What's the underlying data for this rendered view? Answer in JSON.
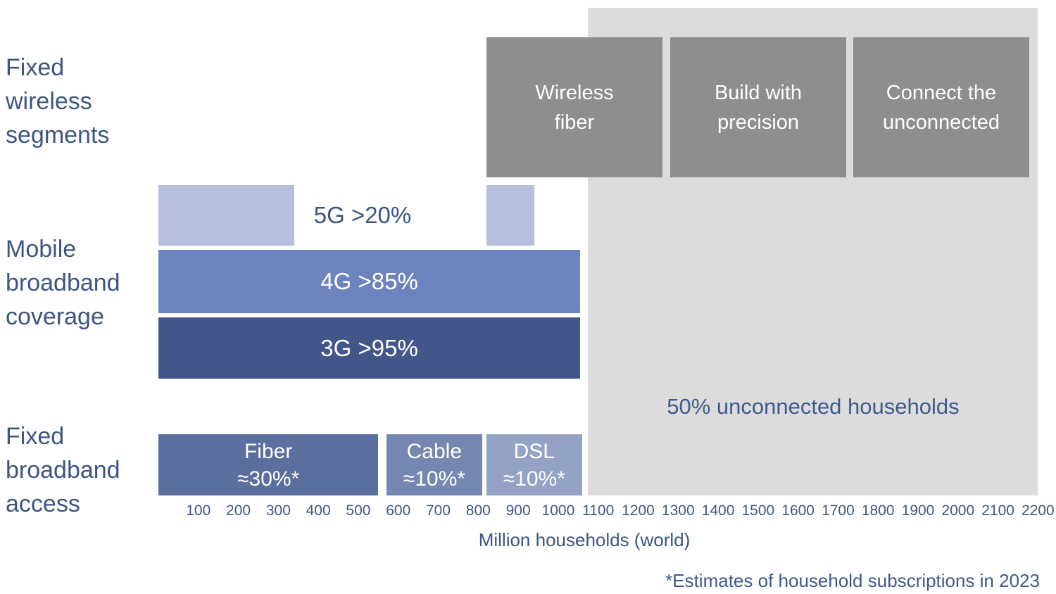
{
  "colors": {
    "label_blue": "#3d5583",
    "axis_blue": "#3e5684",
    "box_gray": "#8f8d8e",
    "panel_gray": "#dcdcdc",
    "bar_5g": "#b6c0de",
    "bar_4g": "#6d83bd",
    "bar_3g": "#42568a",
    "bar_fiber": "#5a6f9e",
    "bar_cable": "#7487b0",
    "bar_dsl": "#94a2c6",
    "white_text": "#ffffff"
  },
  "chart_data": {
    "type": "bar",
    "orientation": "horizontal",
    "title": "",
    "xlabel": "Million households (world)",
    "footnote": "*Estimates of household subscriptions in 2023",
    "x_unit": "million households (world)",
    "x_range": [
      0,
      2200
    ],
    "x_ticks": [
      100,
      200,
      300,
      400,
      500,
      600,
      700,
      800,
      900,
      1000,
      1100,
      1200,
      1300,
      1400,
      1500,
      1600,
      1700,
      1800,
      1900,
      2000,
      2100,
      2200
    ],
    "grid": false,
    "row_groups": [
      {
        "id": "fixed-wireless-segments",
        "label_lines": [
          "Fixed",
          "wireless",
          "segments"
        ]
      },
      {
        "id": "mobile-broadband-coverage",
        "label_lines": [
          "Mobile",
          "broadband",
          "coverage"
        ]
      },
      {
        "id": "fixed-broadband-access",
        "label_lines": [
          "Fixed",
          "broadband",
          "access"
        ]
      }
    ],
    "fixed_wireless_segments": [
      {
        "label_lines": [
          "Wireless",
          "fiber"
        ]
      },
      {
        "label_lines": [
          "Build with",
          "precision"
        ]
      },
      {
        "label_lines": [
          "Connect the",
          "unconnected"
        ]
      }
    ],
    "mobile_rows": [
      {
        "name": "5G",
        "label": "5G >20%",
        "coverage": ">20%",
        "color": "#b6c0de",
        "segments": [
          [
            0,
            340
          ],
          [
            820,
            940
          ]
        ],
        "label_inside": false
      },
      {
        "name": "4G",
        "label": "4G >85%",
        "coverage": ">85%",
        "color": "#6d83bd",
        "segments": [
          [
            0,
            1055
          ]
        ],
        "label_inside": true
      },
      {
        "name": "3G",
        "label": "3G >95%",
        "coverage": ">95%",
        "color": "#42568a",
        "segments": [
          [
            0,
            1055
          ]
        ],
        "label_inside": true
      }
    ],
    "fixed_access_rows": [
      {
        "name": "Fiber",
        "label_lines": [
          "Fiber",
          "≈30%*"
        ],
        "share": "≈30%*",
        "color": "#5a6f9e",
        "segment": [
          0,
          550
        ]
      },
      {
        "name": "Cable",
        "label_lines": [
          "Cable",
          "≈10%*"
        ],
        "share": "≈10%*",
        "color": "#7487b0",
        "segment": [
          570,
          810
        ]
      },
      {
        "name": "DSL",
        "label_lines": [
          "DSL",
          "≈10%*"
        ],
        "share": "≈10%*",
        "color": "#94a2c6",
        "segment": [
          820,
          1060
        ]
      }
    ],
    "unconnected": {
      "label": "50% unconnected households",
      "share": "50%",
      "segment": [
        1075,
        2200
      ],
      "color": "#dcdcdc"
    }
  }
}
